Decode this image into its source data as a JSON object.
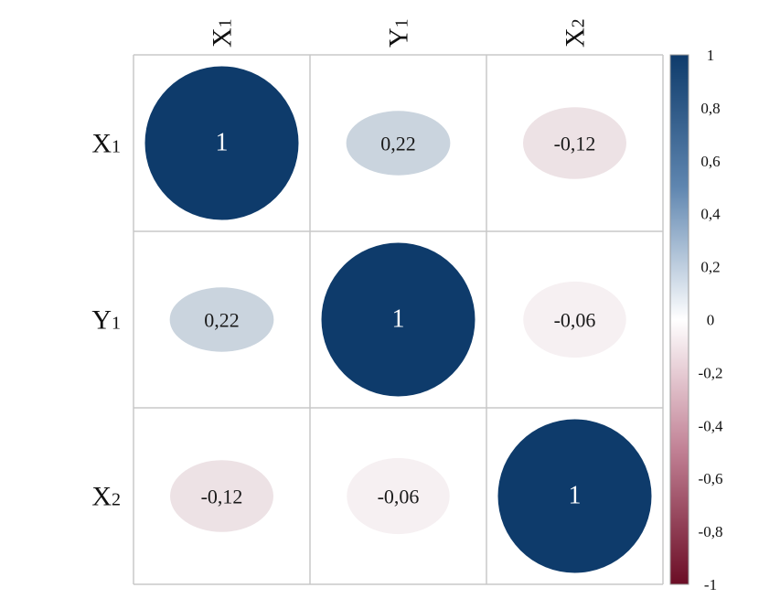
{
  "chart_data": {
    "type": "heatmap",
    "rows": [
      "X1",
      "Y1",
      "X2"
    ],
    "columns": [
      "X1",
      "Y1",
      "X2"
    ],
    "matrix": [
      [
        1,
        0.22,
        -0.12
      ],
      [
        0.22,
        1,
        -0.06
      ],
      [
        -0.12,
        -0.06,
        1
      ]
    ],
    "cell_labels": [
      [
        "1",
        "0,22",
        "-0,12"
      ],
      [
        "0,22",
        "1",
        "-0,06"
      ],
      [
        "-0,12",
        "-0,06",
        "1"
      ]
    ],
    "colorbar": {
      "range": [
        -1,
        1
      ],
      "ticks": [
        1,
        0.8,
        0.6,
        0.4,
        0.2,
        0,
        -0.2,
        -0.4,
        -0.6,
        -0.8,
        -1
      ],
      "tick_labels": [
        "1",
        "0,8",
        "0,6",
        "0,4",
        "0,2",
        "0",
        "-0,2",
        "-0,4",
        "-0,6",
        "-0,8",
        "-1"
      ],
      "colors": {
        "positive": "#0e3b6b",
        "zero": "#ffffff",
        "negative": "#6b0d25"
      }
    },
    "grid": true,
    "legend_position": "right"
  }
}
